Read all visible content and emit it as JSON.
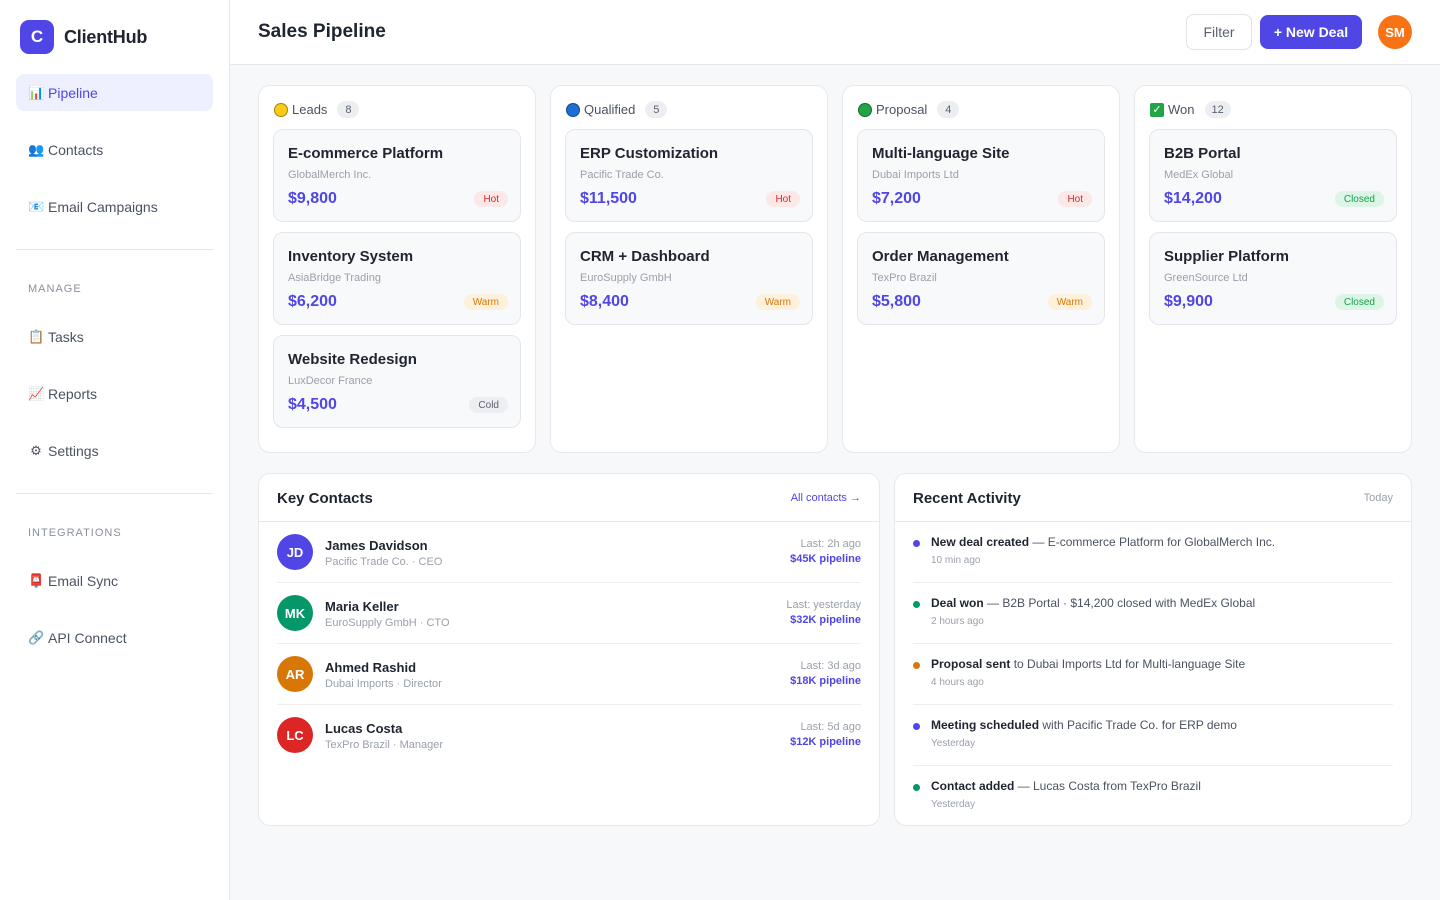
{
  "app": {
    "logo_letter": "C",
    "name": "ClientHub"
  },
  "sidebar": {
    "items": [
      {
        "icon": "📊",
        "label": "Pipeline"
      },
      {
        "icon": "👥",
        "label": "Contacts"
      },
      {
        "icon": "📧",
        "label": "Email Campaigns"
      }
    ],
    "manage_label": "MANAGE",
    "manage_items": [
      {
        "icon": "📋",
        "label": "Tasks"
      },
      {
        "icon": "📈",
        "label": "Reports"
      },
      {
        "icon": "⚙",
        "label": "Settings"
      }
    ],
    "integrations_label": "INTEGRATIONS",
    "integration_items": [
      {
        "icon": "📮",
        "label": "Email Sync"
      },
      {
        "icon": "🔗",
        "label": "API Connect"
      }
    ]
  },
  "header": {
    "title": "Sales Pipeline",
    "filter_label": "Filter",
    "new_deal_label": "+ New Deal",
    "user_initials": "SM"
  },
  "columns": [
    {
      "name": "Leads",
      "count": "8",
      "color": "#facc15",
      "deals": [
        {
          "title": "E-commerce Platform",
          "company": "GlobalMerch Inc.",
          "value": "$9,800",
          "tag": "Hot"
        },
        {
          "title": "Inventory System",
          "company": "AsiaBridge Trading",
          "value": "$6,200",
          "tag": "Warm"
        },
        {
          "title": "Website Redesign",
          "company": "LuxDecor France",
          "value": "$4,500",
          "tag": "Cold"
        }
      ]
    },
    {
      "name": "Qualified",
      "count": "5",
      "color": "#1d6fd6",
      "deals": [
        {
          "title": "ERP Customization",
          "company": "Pacific Trade Co.",
          "value": "$11,500",
          "tag": "Hot"
        },
        {
          "title": "CRM + Dashboard",
          "company": "EuroSupply GmbH",
          "value": "$8,400",
          "tag": "Warm"
        }
      ]
    },
    {
      "name": "Proposal",
      "count": "4",
      "color": "#22a447",
      "deals": [
        {
          "title": "Multi-language Site",
          "company": "Dubai Imports Ltd",
          "value": "$7,200",
          "tag": "Hot"
        },
        {
          "title": "Order Management",
          "company": "TexPro Brazil",
          "value": "$5,800",
          "tag": "Warm"
        }
      ]
    },
    {
      "name": "Won",
      "count": "12",
      "color": "#22a447",
      "deals": [
        {
          "title": "B2B Portal",
          "company": "MedEx Global",
          "value": "$14,200",
          "tag": "Closed"
        },
        {
          "title": "Supplier Platform",
          "company": "GreenSource Ltd",
          "value": "$9,900",
          "tag": "Closed"
        }
      ]
    }
  ],
  "contacts_panel": {
    "title": "Key Contacts",
    "link_label": "All contacts →",
    "contacts": [
      {
        "initials": "JD",
        "name": "James Davidson",
        "role": "Pacific Trade Co. · CEO",
        "last": "Last: 2h ago",
        "pipeline": "$45K pipeline",
        "color": "#4f46e5"
      },
      {
        "initials": "MK",
        "name": "Maria Keller",
        "role": "EuroSupply GmbH · CTO",
        "last": "Last: yesterday",
        "pipeline": "$32K pipeline",
        "color": "#059669"
      },
      {
        "initials": "AR",
        "name": "Ahmed Rashid",
        "role": "Dubai Imports · Director",
        "last": "Last: 3d ago",
        "pipeline": "$18K pipeline",
        "color": "#d97706"
      },
      {
        "initials": "LC",
        "name": "Lucas Costa",
        "role": "TexPro Brazil · Manager",
        "last": "Last: 5d ago",
        "pipeline": "$12K pipeline",
        "color": "#dc2626"
      }
    ]
  },
  "activity_panel": {
    "title": "Recent Activity",
    "meta": "Today",
    "items": [
      {
        "strong": "New deal created",
        "text": " — E-commerce Platform for GlobalMerch Inc.",
        "time": "10 min ago",
        "color": "#4f46e5"
      },
      {
        "strong": "Deal won",
        "text": " — B2B Portal · $14,200 closed with MedEx Global",
        "time": "2 hours ago",
        "color": "#059669"
      },
      {
        "strong": "Proposal sent",
        "text": " to Dubai Imports Ltd for Multi-language Site",
        "time": "4 hours ago",
        "color": "#d97706"
      },
      {
        "strong": "Meeting scheduled",
        "text": " with Pacific Trade Co. for ERP demo",
        "time": "Yesterday",
        "color": "#4f46e5"
      },
      {
        "strong": "Contact added",
        "text": " — Lucas Costa from TexPro Brazil",
        "time": "Yesterday",
        "color": "#059669"
      }
    ]
  }
}
